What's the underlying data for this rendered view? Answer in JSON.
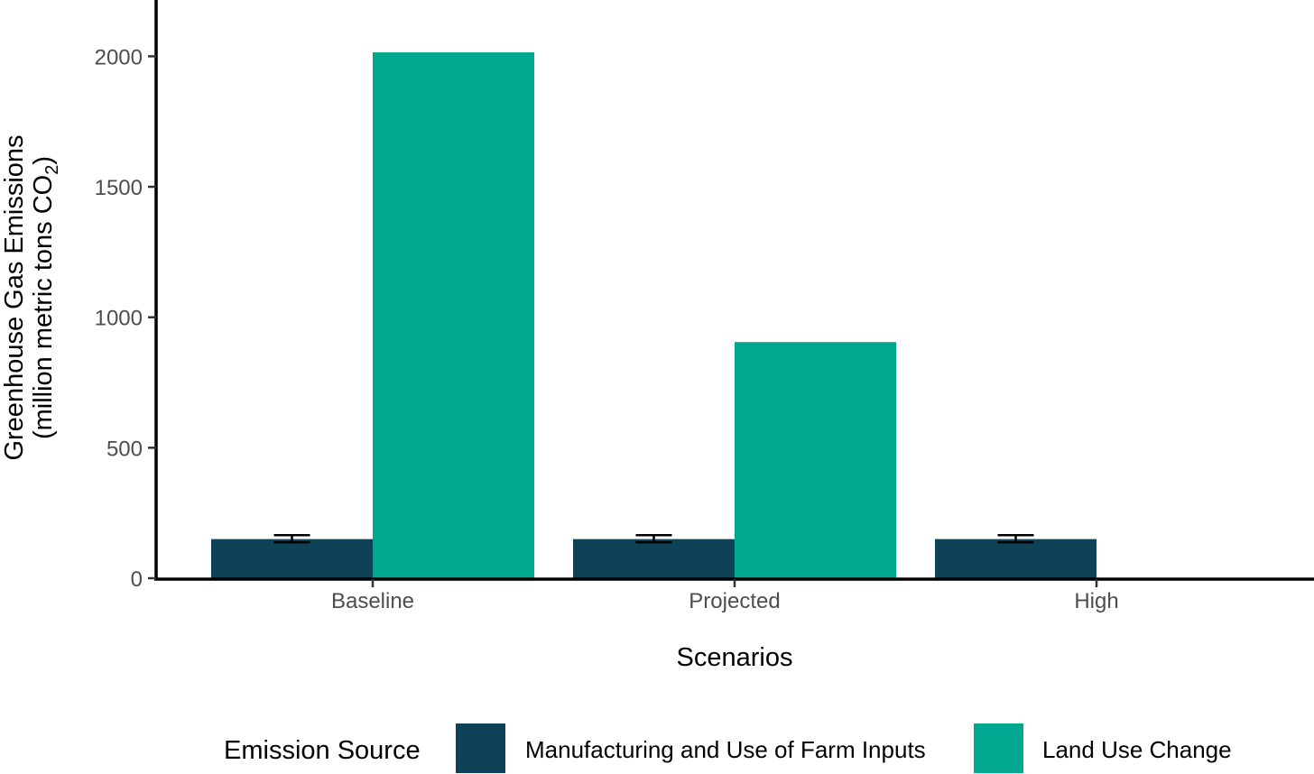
{
  "chart_data": {
    "type": "bar",
    "title": "",
    "xlabel": "Scenarios",
    "ylabel_line1": "Greenhouse Gas Emissions",
    "ylabel_line2": "(million metric tons CO",
    "ylabel_subscript": "2",
    "ylabel_close": ")",
    "ylim": [
      0,
      2200
    ],
    "yticks": [
      0,
      500,
      1000,
      1500,
      2000
    ],
    "categories": [
      "Baseline",
      "Projected",
      "High"
    ],
    "series": [
      {
        "name": "Manufacturing and Use of Farm Inputs",
        "color": "#0e4257",
        "values": [
          150,
          150,
          150
        ],
        "error": [
          [
            138,
            165
          ],
          [
            138,
            165
          ],
          [
            138,
            165
          ]
        ]
      },
      {
        "name": "Land Use Change",
        "color": "#00a88f",
        "values": [
          2015,
          905,
          0
        ],
        "error": null
      }
    ],
    "legend": {
      "title": "Emission Source",
      "position": "bottom"
    }
  }
}
